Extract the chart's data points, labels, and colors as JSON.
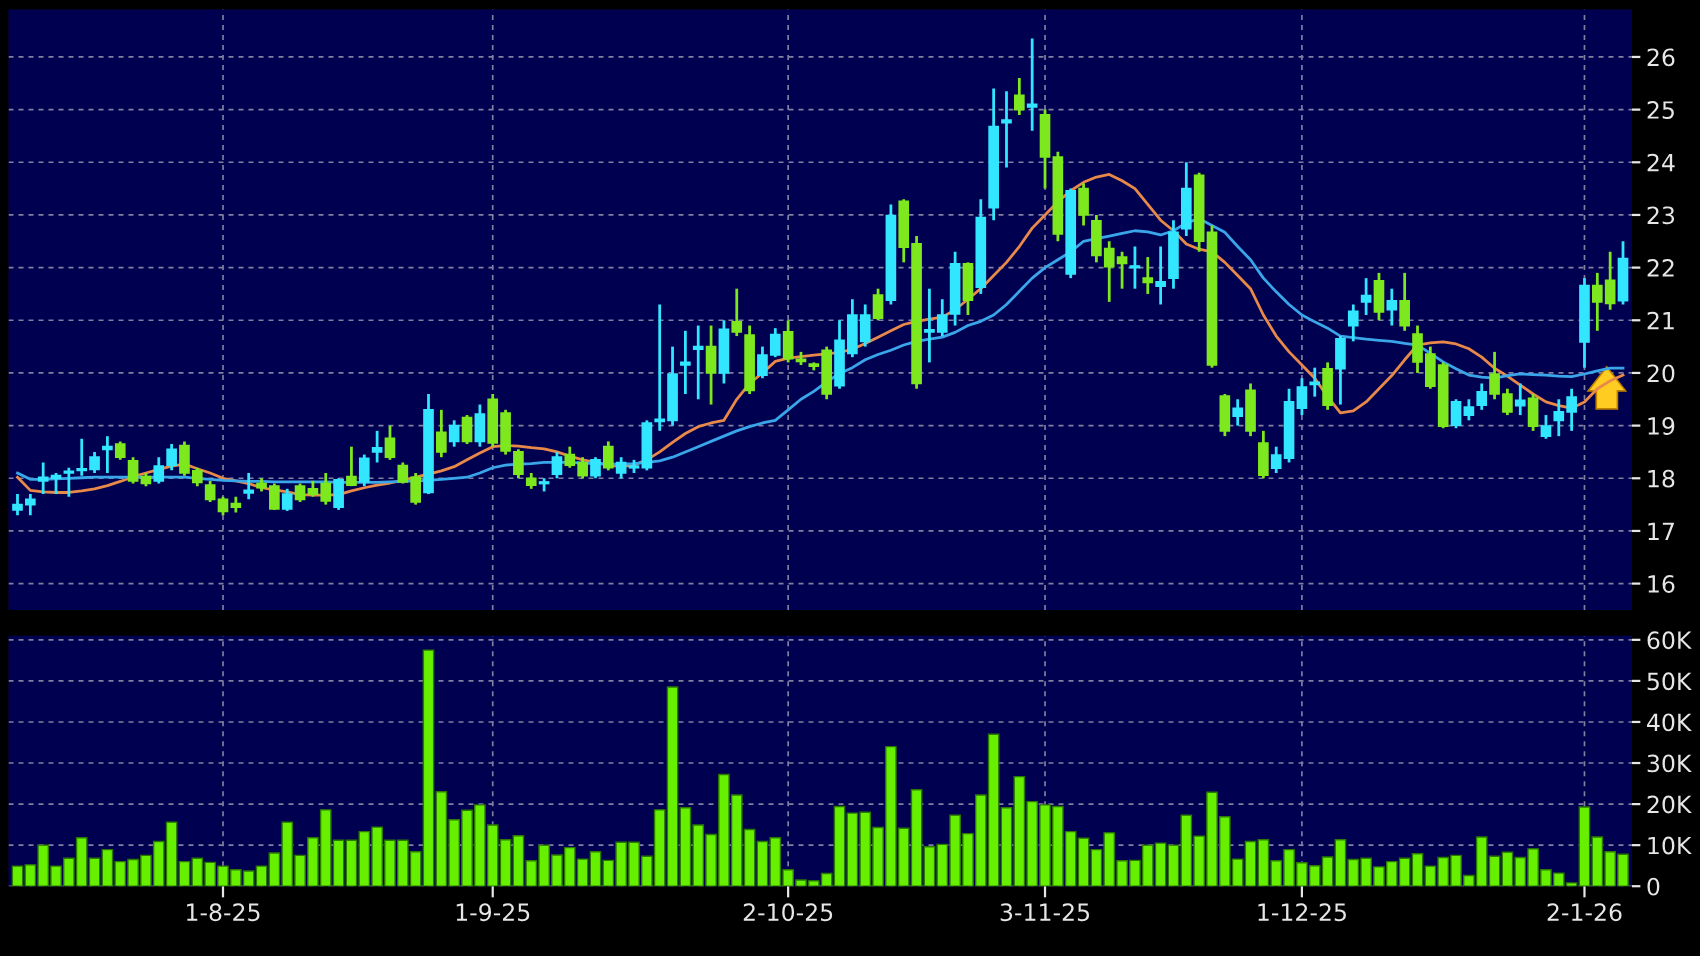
{
  "chart_data": [
    {
      "type": "candlestick",
      "tick_labels": "y",
      "grid": true,
      "legend": false,
      "categories": [
        null,
        null,
        null,
        null,
        null,
        null,
        null,
        null,
        null,
        null,
        null,
        null,
        null,
        null,
        null,
        null,
        null,
        null,
        null,
        null,
        null,
        null,
        null,
        null,
        null,
        null,
        null,
        null,
        null,
        null,
        null,
        null,
        null,
        null,
        null,
        null,
        null,
        null,
        null,
        null,
        null,
        null,
        null,
        null,
        null,
        null,
        null,
        null,
        null,
        null,
        null,
        null,
        null,
        null,
        null,
        null,
        null,
        null,
        null,
        null,
        null,
        null,
        null,
        null,
        null,
        null,
        null,
        null,
        null,
        null,
        null,
        null,
        null,
        null,
        null,
        null,
        null,
        null,
        null,
        null,
        null,
        null,
        null,
        null,
        null,
        null,
        null,
        null,
        null,
        null,
        null,
        null,
        null,
        null,
        null,
        null,
        null,
        null,
        null,
        null,
        null,
        null,
        null,
        null,
        null,
        null,
        null,
        null,
        null,
        null,
        null,
        null,
        null,
        null,
        null,
        null,
        null,
        null,
        null,
        null,
        null,
        null,
        null,
        null,
        null,
        null
      ],
      "ylim": [
        15.5,
        26.9
      ],
      "yticks": [
        16,
        17,
        18,
        19,
        20,
        21,
        22,
        23,
        24,
        25,
        26
      ],
      "ohlc": [
        [
          17.4,
          17.7,
          17.3,
          17.5
        ],
        [
          17.5,
          17.7,
          17.3,
          17.6
        ],
        [
          17.95,
          18.3,
          17.7,
          18.02
        ],
        [
          18.0,
          18.1,
          17.7,
          18.05
        ],
        [
          18.1,
          18.2,
          17.65,
          18.1
        ],
        [
          18.15,
          18.75,
          18.05,
          18.18
        ],
        [
          18.17,
          18.5,
          18.1,
          18.4
        ],
        [
          18.55,
          18.8,
          18.1,
          18.6
        ],
        [
          18.65,
          18.7,
          18.35,
          18.4
        ],
        [
          18.33,
          18.4,
          17.9,
          17.95
        ],
        [
          18.03,
          18.1,
          17.85,
          17.9
        ],
        [
          17.95,
          18.4,
          17.9,
          18.23
        ],
        [
          18.25,
          18.65,
          18.15,
          18.55
        ],
        [
          18.62,
          18.7,
          18.05,
          18.1
        ],
        [
          18.14,
          18.2,
          17.85,
          17.92
        ],
        [
          17.87,
          17.95,
          17.55,
          17.6
        ],
        [
          17.6,
          17.65,
          17.3,
          17.37
        ],
        [
          17.52,
          17.65,
          17.35,
          17.45
        ],
        [
          17.72,
          18.1,
          17.6,
          17.77
        ],
        [
          17.9,
          18.0,
          17.75,
          17.82
        ],
        [
          17.85,
          17.9,
          17.4,
          17.42
        ],
        [
          17.42,
          17.8,
          17.38,
          17.7
        ],
        [
          17.85,
          17.9,
          17.55,
          17.6
        ],
        [
          17.8,
          17.95,
          17.65,
          17.7
        ],
        [
          17.9,
          18.1,
          17.5,
          17.57
        ],
        [
          17.45,
          18.0,
          17.4,
          17.97
        ],
        [
          18.03,
          18.6,
          17.85,
          17.87
        ],
        [
          17.93,
          18.45,
          17.85,
          18.38
        ],
        [
          18.5,
          18.9,
          18.3,
          18.58
        ],
        [
          18.76,
          19.0,
          18.35,
          18.4
        ],
        [
          18.24,
          18.3,
          17.9,
          17.93
        ],
        [
          18.02,
          18.1,
          17.5,
          17.55
        ],
        [
          17.73,
          19.6,
          17.7,
          19.3
        ],
        [
          18.87,
          19.3,
          18.4,
          18.5
        ],
        [
          18.7,
          19.1,
          18.6,
          19.0
        ],
        [
          19.15,
          19.2,
          18.65,
          18.7
        ],
        [
          18.7,
          19.4,
          18.6,
          19.22
        ],
        [
          19.5,
          19.6,
          18.6,
          18.67
        ],
        [
          19.24,
          19.3,
          18.45,
          18.52
        ],
        [
          18.5,
          18.55,
          18.0,
          18.08
        ],
        [
          18.0,
          18.1,
          17.8,
          17.87
        ],
        [
          17.9,
          18.0,
          17.75,
          17.93
        ],
        [
          18.08,
          18.5,
          18.0,
          18.4
        ],
        [
          18.45,
          18.6,
          18.2,
          18.25
        ],
        [
          18.3,
          18.4,
          18.0,
          18.05
        ],
        [
          18.05,
          18.4,
          18.0,
          18.35
        ],
        [
          18.6,
          18.7,
          18.15,
          18.2
        ],
        [
          18.1,
          18.4,
          18.0,
          18.3
        ],
        [
          18.2,
          18.35,
          18.1,
          18.22
        ],
        [
          18.2,
          19.1,
          18.15,
          19.05
        ],
        [
          19.08,
          21.3,
          18.9,
          19.12
        ],
        [
          19.1,
          20.5,
          19.0,
          19.98
        ],
        [
          20.15,
          20.8,
          19.6,
          20.2
        ],
        [
          20.45,
          20.9,
          19.5,
          20.5
        ],
        [
          20.5,
          20.9,
          19.4,
          20.0
        ],
        [
          20.0,
          21.0,
          19.8,
          20.83
        ],
        [
          20.97,
          21.6,
          20.7,
          20.78
        ],
        [
          20.72,
          20.9,
          19.6,
          19.67
        ],
        [
          19.96,
          20.5,
          19.9,
          20.34
        ],
        [
          20.34,
          20.85,
          20.3,
          20.73
        ],
        [
          20.78,
          21.0,
          20.2,
          20.27
        ],
        [
          20.26,
          20.4,
          20.15,
          20.22
        ],
        [
          20.17,
          20.2,
          20.05,
          20.13
        ],
        [
          20.43,
          20.5,
          19.5,
          19.6
        ],
        [
          19.76,
          21.0,
          19.7,
          20.62
        ],
        [
          20.37,
          21.4,
          20.3,
          21.1
        ],
        [
          20.6,
          21.3,
          20.5,
          21.1
        ],
        [
          21.48,
          21.6,
          21.0,
          21.04
        ],
        [
          21.38,
          23.2,
          21.3,
          22.99
        ],
        [
          23.26,
          23.3,
          22.1,
          22.39
        ],
        [
          22.45,
          22.6,
          19.7,
          19.8
        ],
        [
          20.78,
          21.6,
          20.2,
          20.82
        ],
        [
          20.78,
          21.4,
          20.7,
          21.1
        ],
        [
          21.12,
          22.3,
          20.9,
          22.07
        ],
        [
          22.07,
          22.1,
          21.1,
          21.38
        ],
        [
          21.63,
          23.3,
          21.5,
          22.95
        ],
        [
          23.14,
          25.4,
          22.9,
          24.68
        ],
        [
          24.75,
          25.35,
          23.9,
          24.8
        ],
        [
          25.27,
          25.6,
          24.9,
          25.0
        ],
        [
          25.05,
          26.35,
          24.6,
          25.1
        ],
        [
          24.9,
          25.0,
          23.5,
          24.1
        ],
        [
          24.1,
          24.2,
          22.5,
          22.64
        ],
        [
          21.88,
          23.5,
          21.8,
          23.46
        ],
        [
          23.5,
          23.6,
          22.8,
          23.0
        ],
        [
          22.89,
          23.0,
          22.1,
          22.23
        ],
        [
          22.36,
          22.5,
          21.35,
          22.02
        ],
        [
          22.2,
          22.3,
          21.6,
          22.08
        ],
        [
          22.0,
          22.4,
          21.6,
          22.03
        ],
        [
          21.8,
          22.2,
          21.5,
          21.72
        ],
        [
          21.65,
          22.4,
          21.3,
          21.73
        ],
        [
          21.8,
          22.9,
          21.6,
          22.67
        ],
        [
          22.74,
          24.0,
          22.6,
          23.5
        ],
        [
          23.75,
          23.8,
          22.3,
          22.5
        ],
        [
          22.67,
          22.8,
          20.1,
          20.15
        ],
        [
          19.56,
          19.6,
          18.8,
          18.9
        ],
        [
          19.18,
          19.5,
          19.0,
          19.33
        ],
        [
          19.67,
          19.8,
          18.8,
          18.9
        ],
        [
          18.67,
          18.9,
          18.0,
          18.06
        ],
        [
          18.19,
          18.6,
          18.1,
          18.44
        ],
        [
          18.38,
          19.7,
          18.3,
          19.45
        ],
        [
          19.33,
          19.9,
          19.2,
          19.73
        ],
        [
          19.78,
          20.1,
          19.55,
          19.82
        ],
        [
          20.08,
          20.2,
          19.3,
          19.39
        ],
        [
          20.08,
          20.7,
          19.4,
          20.65
        ],
        [
          20.9,
          21.3,
          20.6,
          21.17
        ],
        [
          21.35,
          21.8,
          21.1,
          21.47
        ],
        [
          21.75,
          21.9,
          21.0,
          21.16
        ],
        [
          21.2,
          21.6,
          20.9,
          21.37
        ],
        [
          21.37,
          21.9,
          20.8,
          20.9
        ],
        [
          20.74,
          20.9,
          20.0,
          20.21
        ],
        [
          20.36,
          20.5,
          19.7,
          19.75
        ],
        [
          20.15,
          20.2,
          18.95,
          18.99
        ],
        [
          19.01,
          19.5,
          18.95,
          19.45
        ],
        [
          19.2,
          19.5,
          19.1,
          19.35
        ],
        [
          19.39,
          19.8,
          19.3,
          19.64
        ],
        [
          19.98,
          20.4,
          19.5,
          19.6
        ],
        [
          19.6,
          19.7,
          19.2,
          19.26
        ],
        [
          19.38,
          19.8,
          19.2,
          19.48
        ],
        [
          19.52,
          19.6,
          18.9,
          18.99
        ],
        [
          18.8,
          19.2,
          18.75,
          18.99
        ],
        [
          19.1,
          19.5,
          18.8,
          19.26
        ],
        [
          19.26,
          19.7,
          18.9,
          19.54
        ],
        [
          20.59,
          21.8,
          20.1,
          21.66
        ],
        [
          21.66,
          21.9,
          20.8,
          21.35
        ],
        [
          21.76,
          22.3,
          21.2,
          21.32
        ],
        [
          21.37,
          22.5,
          21.3,
          22.17
        ]
      ],
      "colors": [
        "#33e6ff",
        "#33e6ff",
        "#33e6ff",
        "#33e6ff",
        "#33e6ff",
        "#33e6ff",
        "#33e6ff",
        "#33e6ff",
        "#7ee81e",
        "#7ee81e",
        "#7ee81e",
        "#33e6ff",
        "#33e6ff",
        "#7ee81e",
        "#7ee81e",
        "#7ee81e",
        "#7ee81e",
        "#7ee81e",
        "#33e6ff",
        "#7ee81e",
        "#7ee81e",
        "#33e6ff",
        "#7ee81e",
        "#7ee81e",
        "#7ee81e",
        "#33e6ff",
        "#7ee81e",
        "#33e6ff",
        "#33e6ff",
        "#7ee81e",
        "#7ee81e",
        "#7ee81e",
        "#33e6ff",
        "#7ee81e",
        "#33e6ff",
        "#7ee81e",
        "#33e6ff",
        "#7ee81e",
        "#7ee81e",
        "#7ee81e",
        "#7ee81e",
        "#33e6ff",
        "#33e6ff",
        "#7ee81e",
        "#7ee81e",
        "#33e6ff",
        "#7ee81e",
        "#33e6ff",
        "#33e6ff",
        "#33e6ff",
        "#33e6ff",
        "#33e6ff",
        "#33e6ff",
        "#33e6ff",
        "#7ee81e",
        "#33e6ff",
        "#7ee81e",
        "#7ee81e",
        "#33e6ff",
        "#33e6ff",
        "#7ee81e",
        "#7ee81e",
        "#7ee81e",
        "#7ee81e",
        "#33e6ff",
        "#33e6ff",
        "#33e6ff",
        "#7ee81e",
        "#33e6ff",
        "#7ee81e",
        "#7ee81e",
        "#33e6ff",
        "#33e6ff",
        "#33e6ff",
        "#7ee81e",
        "#33e6ff",
        "#33e6ff",
        "#33e6ff",
        "#7ee81e",
        "#33e6ff",
        "#7ee81e",
        "#7ee81e",
        "#33e6ff",
        "#7ee81e",
        "#7ee81e",
        "#7ee81e",
        "#7ee81e",
        "#33e6ff",
        "#7ee81e",
        "#33e6ff",
        "#33e6ff",
        "#33e6ff",
        "#7ee81e",
        "#7ee81e",
        "#7ee81e",
        "#33e6ff",
        "#7ee81e",
        "#7ee81e",
        "#33e6ff",
        "#33e6ff",
        "#33e6ff",
        "#33e6ff",
        "#7ee81e",
        "#33e6ff",
        "#33e6ff",
        "#33e6ff",
        "#7ee81e",
        "#33e6ff",
        "#7ee81e",
        "#7ee81e",
        "#7ee81e",
        "#7ee81e",
        "#33e6ff",
        "#33e6ff",
        "#33e6ff",
        "#7ee81e",
        "#7ee81e",
        "#33e6ff",
        "#7ee81e",
        "#33e6ff",
        "#33e6ff",
        "#33e6ff",
        "#33e6ff",
        "#7ee81e",
        "#7ee81e",
        "#33e6ff"
      ],
      "series": [
        {
          "type": "line",
          "color": "#e8894a",
          "values": [
            18.02,
            17.77,
            17.74,
            17.73,
            17.73,
            17.76,
            17.8,
            17.86,
            17.94,
            18.03,
            18.1,
            18.17,
            18.23,
            18.27,
            18.18,
            18.1,
            18.0,
            17.95,
            17.9,
            17.82,
            17.78,
            17.74,
            17.69,
            17.68,
            17.68,
            17.69,
            17.76,
            17.82,
            17.87,
            17.91,
            17.96,
            18.02,
            18.08,
            18.14,
            18.22,
            18.35,
            18.48,
            18.6,
            18.62,
            18.61,
            18.58,
            18.56,
            18.5,
            18.42,
            18.35,
            18.3,
            18.25,
            18.22,
            18.25,
            18.35,
            18.5,
            18.68,
            18.85,
            18.98,
            19.05,
            19.1,
            19.5,
            19.8,
            20.0,
            20.22,
            20.28,
            20.31,
            20.34,
            20.36,
            20.39,
            20.45,
            20.56,
            20.68,
            20.8,
            20.92,
            20.98,
            21.02,
            21.06,
            21.2,
            21.4,
            21.6,
            21.85,
            22.1,
            22.4,
            22.75,
            23.0,
            23.25,
            23.46,
            23.62,
            23.72,
            23.77,
            23.65,
            23.5,
            23.2,
            22.9,
            22.7,
            22.45,
            22.35,
            22.3,
            22.1,
            21.85,
            21.6,
            21.1,
            20.7,
            20.4,
            20.15,
            19.9,
            19.55,
            19.24,
            19.28,
            19.45,
            19.7,
            19.95,
            20.25,
            20.53,
            20.57,
            20.59,
            20.55,
            20.46,
            20.3,
            20.09,
            19.94,
            19.77,
            19.6,
            19.45,
            19.38,
            19.33,
            19.45,
            19.7,
            19.85,
            19.96
          ]
        },
        {
          "type": "line",
          "color": "#3aa6ea",
          "values": [
            18.1,
            17.98,
            17.98,
            17.99,
            18.0,
            18.01,
            18.02,
            18.02,
            18.02,
            18.02,
            18.02,
            18.02,
            18.02,
            18.02,
            18.0,
            17.98,
            17.96,
            17.95,
            17.94,
            17.94,
            17.93,
            17.93,
            17.93,
            17.93,
            17.93,
            17.92,
            17.92,
            17.92,
            17.92,
            17.93,
            17.94,
            17.95,
            17.96,
            17.98,
            18.0,
            18.02,
            18.1,
            18.2,
            18.25,
            18.27,
            18.28,
            18.3,
            18.3,
            18.3,
            18.29,
            18.28,
            18.27,
            18.27,
            18.28,
            18.3,
            18.33,
            18.4,
            18.5,
            18.6,
            18.7,
            18.8,
            18.9,
            18.98,
            19.05,
            19.1,
            19.3,
            19.5,
            19.65,
            19.83,
            19.99,
            20.1,
            20.25,
            20.35,
            20.43,
            20.53,
            20.6,
            20.64,
            20.68,
            20.77,
            20.9,
            20.98,
            21.1,
            21.3,
            21.55,
            21.8,
            22.0,
            22.15,
            22.3,
            22.5,
            22.55,
            22.6,
            22.65,
            22.7,
            22.68,
            22.62,
            22.7,
            22.85,
            22.93,
            22.8,
            22.67,
            22.4,
            22.15,
            21.8,
            21.54,
            21.3,
            21.1,
            20.97,
            20.85,
            20.7,
            20.67,
            20.64,
            20.62,
            20.6,
            20.56,
            20.53,
            20.37,
            20.21,
            20.08,
            19.96,
            19.92,
            19.9,
            19.95,
            19.98,
            19.97,
            19.96,
            19.94,
            19.93,
            19.98,
            20.04,
            20.09,
            20.09
          ]
        }
      ]
    },
    {
      "type": "bar",
      "grid": true,
      "legend": false,
      "color": "#66f000",
      "categories": [
        null,
        null,
        null,
        null,
        null,
        null,
        null,
        null,
        null,
        null,
        null,
        null,
        null,
        null,
        null,
        null,
        "1-8-25",
        null,
        null,
        null,
        null,
        null,
        null,
        null,
        null,
        null,
        null,
        null,
        null,
        null,
        null,
        null,
        null,
        null,
        null,
        null,
        null,
        "1-9-25",
        null,
        null,
        null,
        null,
        null,
        null,
        null,
        null,
        null,
        null,
        null,
        null,
        null,
        null,
        null,
        null,
        null,
        null,
        null,
        null,
        null,
        null,
        "2-10-25",
        null,
        null,
        null,
        null,
        null,
        null,
        null,
        null,
        null,
        null,
        null,
        null,
        null,
        null,
        null,
        null,
        null,
        null,
        null,
        "3-11-25",
        null,
        null,
        null,
        null,
        null,
        null,
        null,
        null,
        null,
        null,
        null,
        null,
        null,
        null,
        null,
        null,
        null,
        null,
        null,
        "1-12-25",
        null,
        null,
        null,
        null,
        null,
        null,
        null,
        null,
        null,
        null,
        null,
        null,
        null,
        null,
        null,
        null,
        null,
        null,
        null,
        null,
        null,
        "2-1-26",
        null,
        null,
        null
      ],
      "ylim": [
        0,
        61
      ],
      "yticks": [
        0,
        {
          "value": 10,
          "label": "10K"
        },
        {
          "value": 20,
          "label": "20K"
        },
        {
          "value": 30,
          "label": "30K"
        },
        {
          "value": 40,
          "label": "40K"
        },
        {
          "value": 50,
          "label": "50K"
        },
        {
          "value": 60,
          "label": "60K"
        }
      ],
      "values": [
        4.9,
        5.2,
        10,
        4.9,
        6.8,
        11.8,
        6.8,
        8.9,
        6,
        6.5,
        7.5,
        10.9,
        15.6,
        6,
        6.8,
        5.8,
        4.9,
        4,
        3.7,
        4.9,
        8.1,
        15.6,
        7.5,
        11.8,
        18.6,
        11.2,
        11.2,
        13.3,
        14.4,
        11.2,
        11.2,
        8.4,
        57.5,
        23,
        16.2,
        18.5,
        19.8,
        14.9,
        11.3,
        12.3,
        6.2,
        10,
        7.6,
        9.4,
        6.6,
        8.4,
        6.3,
        10.7,
        10.7,
        7.3,
        18.6,
        48.5,
        19.1,
        14.9,
        12.6,
        27.2,
        22.2,
        13.8,
        10.9,
        11.8,
        4,
        1.5,
        1.3,
        3.1,
        19.4,
        17.8,
        18,
        14.3,
        34,
        14.1,
        23.5,
        9.6,
        10.2,
        17.3,
        12.8,
        22.2,
        37,
        19.1,
        26.7,
        20.6,
        19.8,
        19.4,
        13.3,
        11.7,
        8.9,
        13,
        6.2,
        6.3,
        10,
        10.5,
        10,
        17.3,
        12.2,
        22.9,
        16.9,
        6.6,
        10.9,
        11.3,
        6.2,
        8.9,
        5.7,
        5,
        7.1,
        11.3,
        6.5,
        6.8,
        4.7,
        6,
        6.8,
        7.9,
        4.9,
        7,
        7.5,
        2.6,
        12,
        7.3,
        8.3,
        7,
        9.1,
        4,
        3.2,
        0.8,
        19.3,
        12,
        8.4,
        7.8
      ]
    }
  ]
}
